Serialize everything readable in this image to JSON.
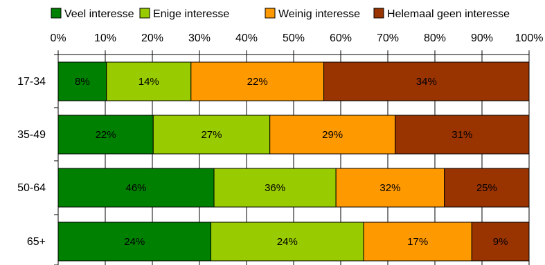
{
  "chart_data": {
    "type": "bar",
    "orientation": "horizontal",
    "stacked": "percent",
    "categories": [
      "17-34",
      "35-49",
      "50-64",
      "65+"
    ],
    "series": [
      {
        "name": "Veel interesse",
        "color": "#008000",
        "values": [
          8,
          22,
          46,
          24
        ],
        "labels": [
          "8%",
          "22%",
          "46%",
          "24%"
        ]
      },
      {
        "name": "Enige interesse",
        "color": "#99cc00",
        "values": [
          14,
          27,
          36,
          24
        ],
        "labels": [
          "14%",
          "27%",
          "36%",
          "24%"
        ]
      },
      {
        "name": "Weinig interesse",
        "color": "#ff9900",
        "values": [
          22,
          29,
          32,
          17
        ],
        "labels": [
          "22%",
          "29%",
          "32%",
          "17%"
        ]
      },
      {
        "name": "Helemaal geen interesse",
        "color": "#993300",
        "values": [
          34,
          31,
          25,
          9
        ],
        "labels": [
          "34%",
          "31%",
          "25%",
          "9%"
        ]
      }
    ],
    "x_ticks": [
      "0%",
      "10%",
      "20%",
      "30%",
      "40%",
      "50%",
      "60%",
      "70%",
      "80%",
      "90%",
      "100%"
    ],
    "xlim": [
      0,
      100
    ],
    "x_axis_position": "top",
    "grid": "vertical",
    "legend_position": "top"
  }
}
